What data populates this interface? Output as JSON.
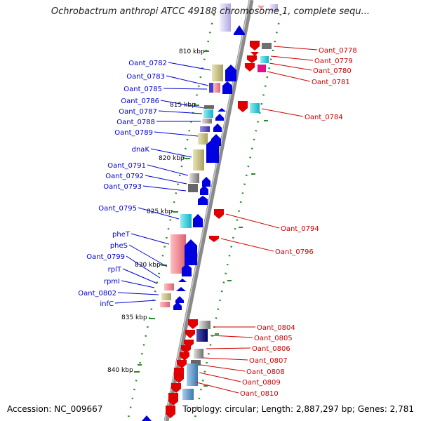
{
  "title": "Ochrobactrum anthropi ATCC 49188 chromosome 1, complete sequ...",
  "footer": {
    "accession": "Accession: NC_009667",
    "summary": "Topology: circular; Length: 2,887,297 bp; Genes: 2,781"
  },
  "colors": {
    "backbone": "#8a8a8a",
    "left_label": "#0000cc",
    "right_label": "#cc0000",
    "tick": "#2a8a2a"
  },
  "kbp_ticks": [
    "810 kbp",
    "815 kbp",
    "820 kbp",
    "825 kbp",
    "830 kbp",
    "835 kbp",
    "840 kbp"
  ],
  "left_genes": [
    "Oant_0782",
    "Oant_0783",
    "Oant_0785",
    "Oant_0786",
    "Oant_0787",
    "Oant_0788",
    "Oant_0789",
    "dnaK",
    "Oant_0791",
    "Oant_0792",
    "Oant_0793",
    "Oant_0795",
    "pheT",
    "pheS",
    "Oant_0799",
    "rplT",
    "rpmI",
    "Oant_0802",
    "infC"
  ],
  "right_genes": [
    "Oant_0778",
    "Oant_0779",
    "Oant_0780",
    "Oant_0781",
    "Oant_0784",
    "Oant_0794",
    "Oant_0796",
    "Oant_0804",
    "Oant_0805",
    "Oant_0806",
    "Oant_0807",
    "Oant_0808",
    "Oant_0809",
    "Oant_0810"
  ]
}
